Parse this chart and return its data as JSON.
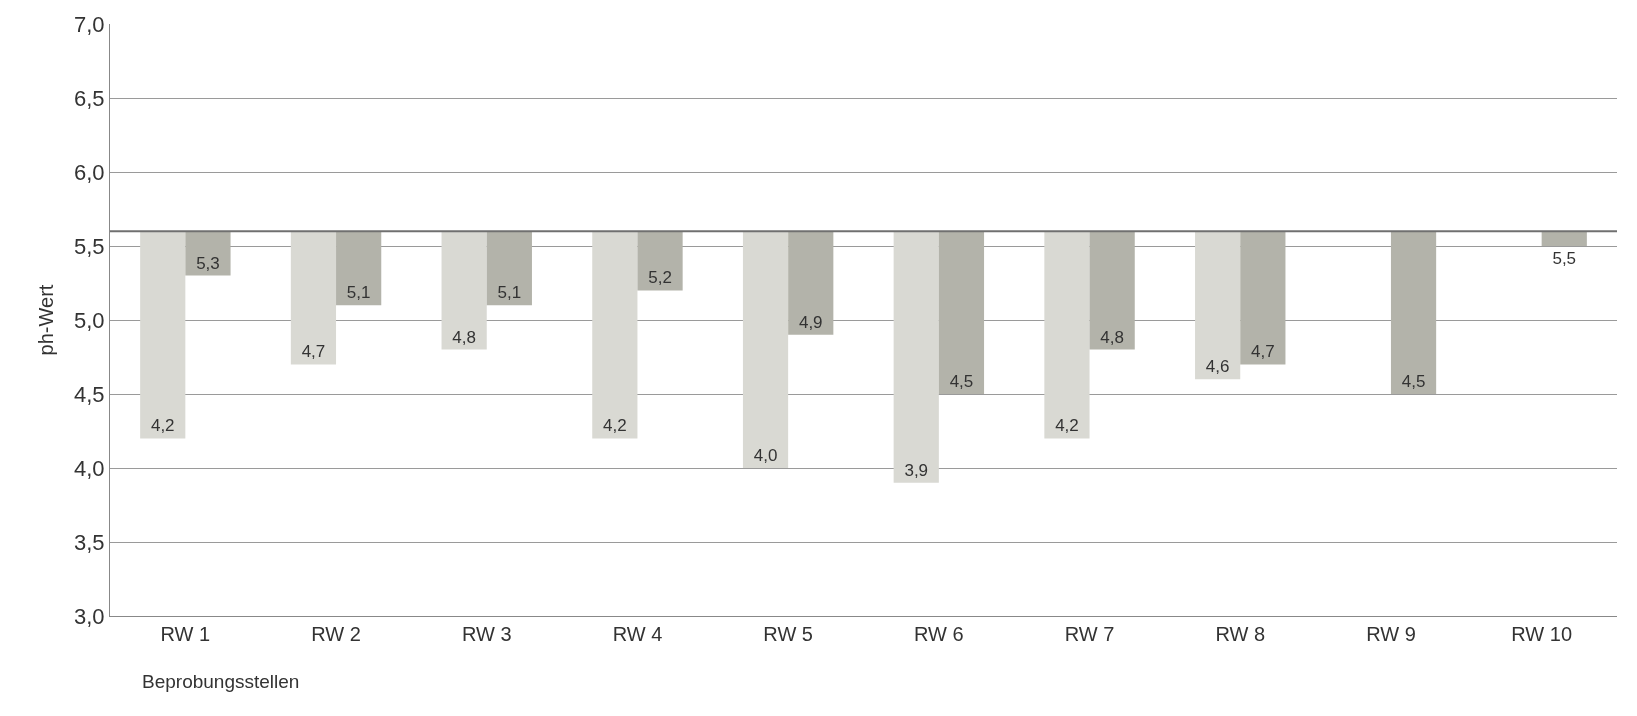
{
  "chart_data": {
    "type": "bar",
    "xlabel": "Beprobungsstellen",
    "ylabel": "ph-Wert",
    "categories": [
      "RW 1",
      "RW 2",
      "RW 3",
      "RW 4",
      "RW 5",
      "RW 6",
      "RW 7",
      "RW 8",
      "RW 9",
      "RW 10"
    ],
    "series": [
      {
        "color": "#d9d9d3",
        "base": [
          5.6,
          5.6,
          5.6,
          5.6,
          5.6,
          5.6,
          5.6,
          5.6,
          null,
          null
        ],
        "values": [
          -1.4,
          -0.9,
          -0.8,
          -1.4,
          -1.6,
          -1.7,
          -1.4,
          -1.0,
          null,
          null
        ],
        "value_labels": [
          "4,2",
          "4,7",
          "4,8",
          "4,2",
          "4,0",
          "3,9",
          "4,2",
          "4,6",
          null,
          null
        ]
      },
      {
        "color": "#b3b3aa",
        "base": [
          5.6,
          5.6,
          5.6,
          5.6,
          5.6,
          5.6,
          5.6,
          5.6,
          5.6,
          5.6
        ],
        "values": [
          -0.3,
          -0.5,
          -0.5,
          -0.4,
          -0.7,
          -1.1,
          -0.8,
          -0.9,
          -1.1,
          -0.1
        ],
        "value_labels": [
          "5,3",
          "5,1",
          "5,1",
          "5,2",
          "4,9",
          "4,5",
          "4,8",
          "4,7",
          "4,5",
          "5,5"
        ]
      }
    ],
    "ylim": [
      3.0,
      7.0
    ],
    "yticks": [
      {
        "value": 3.0,
        "label": "3,0"
      },
      {
        "value": 3.5,
        "label": "3,5"
      },
      {
        "value": 4.0,
        "label": "4,0"
      },
      {
        "value": 4.5,
        "label": "4,5"
      },
      {
        "value": 5.0,
        "label": "5,0"
      },
      {
        "value": 5.5,
        "label": "5,5"
      },
      {
        "value": 6.0,
        "label": "6,0"
      },
      {
        "value": 6.5,
        "label": "6,5"
      },
      {
        "value": 7.0,
        "label": "7,0"
      }
    ],
    "ref_lines": [
      {
        "axis": "y",
        "value": 5.6,
        "color": "#707070"
      }
    ],
    "grid": "y"
  }
}
